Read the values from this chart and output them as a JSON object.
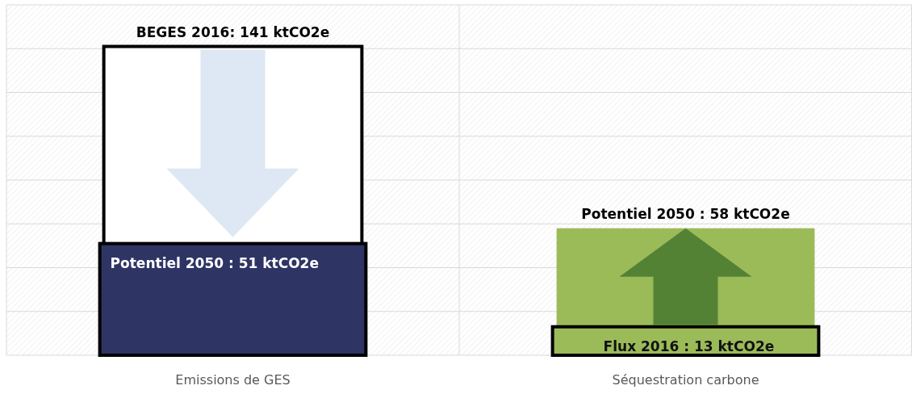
{
  "chart_data": {
    "type": "bar",
    "categories": [
      "Emissions de GES",
      "Séquestration carbone"
    ],
    "series": [
      {
        "colors": [
          "#ffffff",
          "#9bbb59"
        ],
        "values": [
          141,
          13
        ],
        "value_labels": [
          "BEGES 2016:  141 ktCO2e",
          "Flux 2016 : 13 ktCO2e"
        ]
      },
      {
        "colors": [
          "#2e3464",
          "#9bbb59"
        ],
        "values": [
          51,
          58
        ],
        "value_labels": [
          "Potentiel  2050 : 51 ktCO2e",
          "Potentiel 2050 : 58 ktCO2e"
        ]
      }
    ],
    "ylim": [
      0,
      160
    ],
    "yticks": [
      {
        "value": 0,
        "label": null
      },
      {
        "value": 20,
        "label": null
      },
      {
        "value": 40,
        "label": null
      },
      {
        "value": 60,
        "label": null
      },
      {
        "value": 80,
        "label": null
      },
      {
        "value": 100,
        "label": null
      },
      {
        "value": 120,
        "label": null
      },
      {
        "value": 140,
        "label": null
      },
      {
        "value": 160,
        "label": null
      }
    ],
    "tick_labels": "x",
    "grid": true
  }
}
